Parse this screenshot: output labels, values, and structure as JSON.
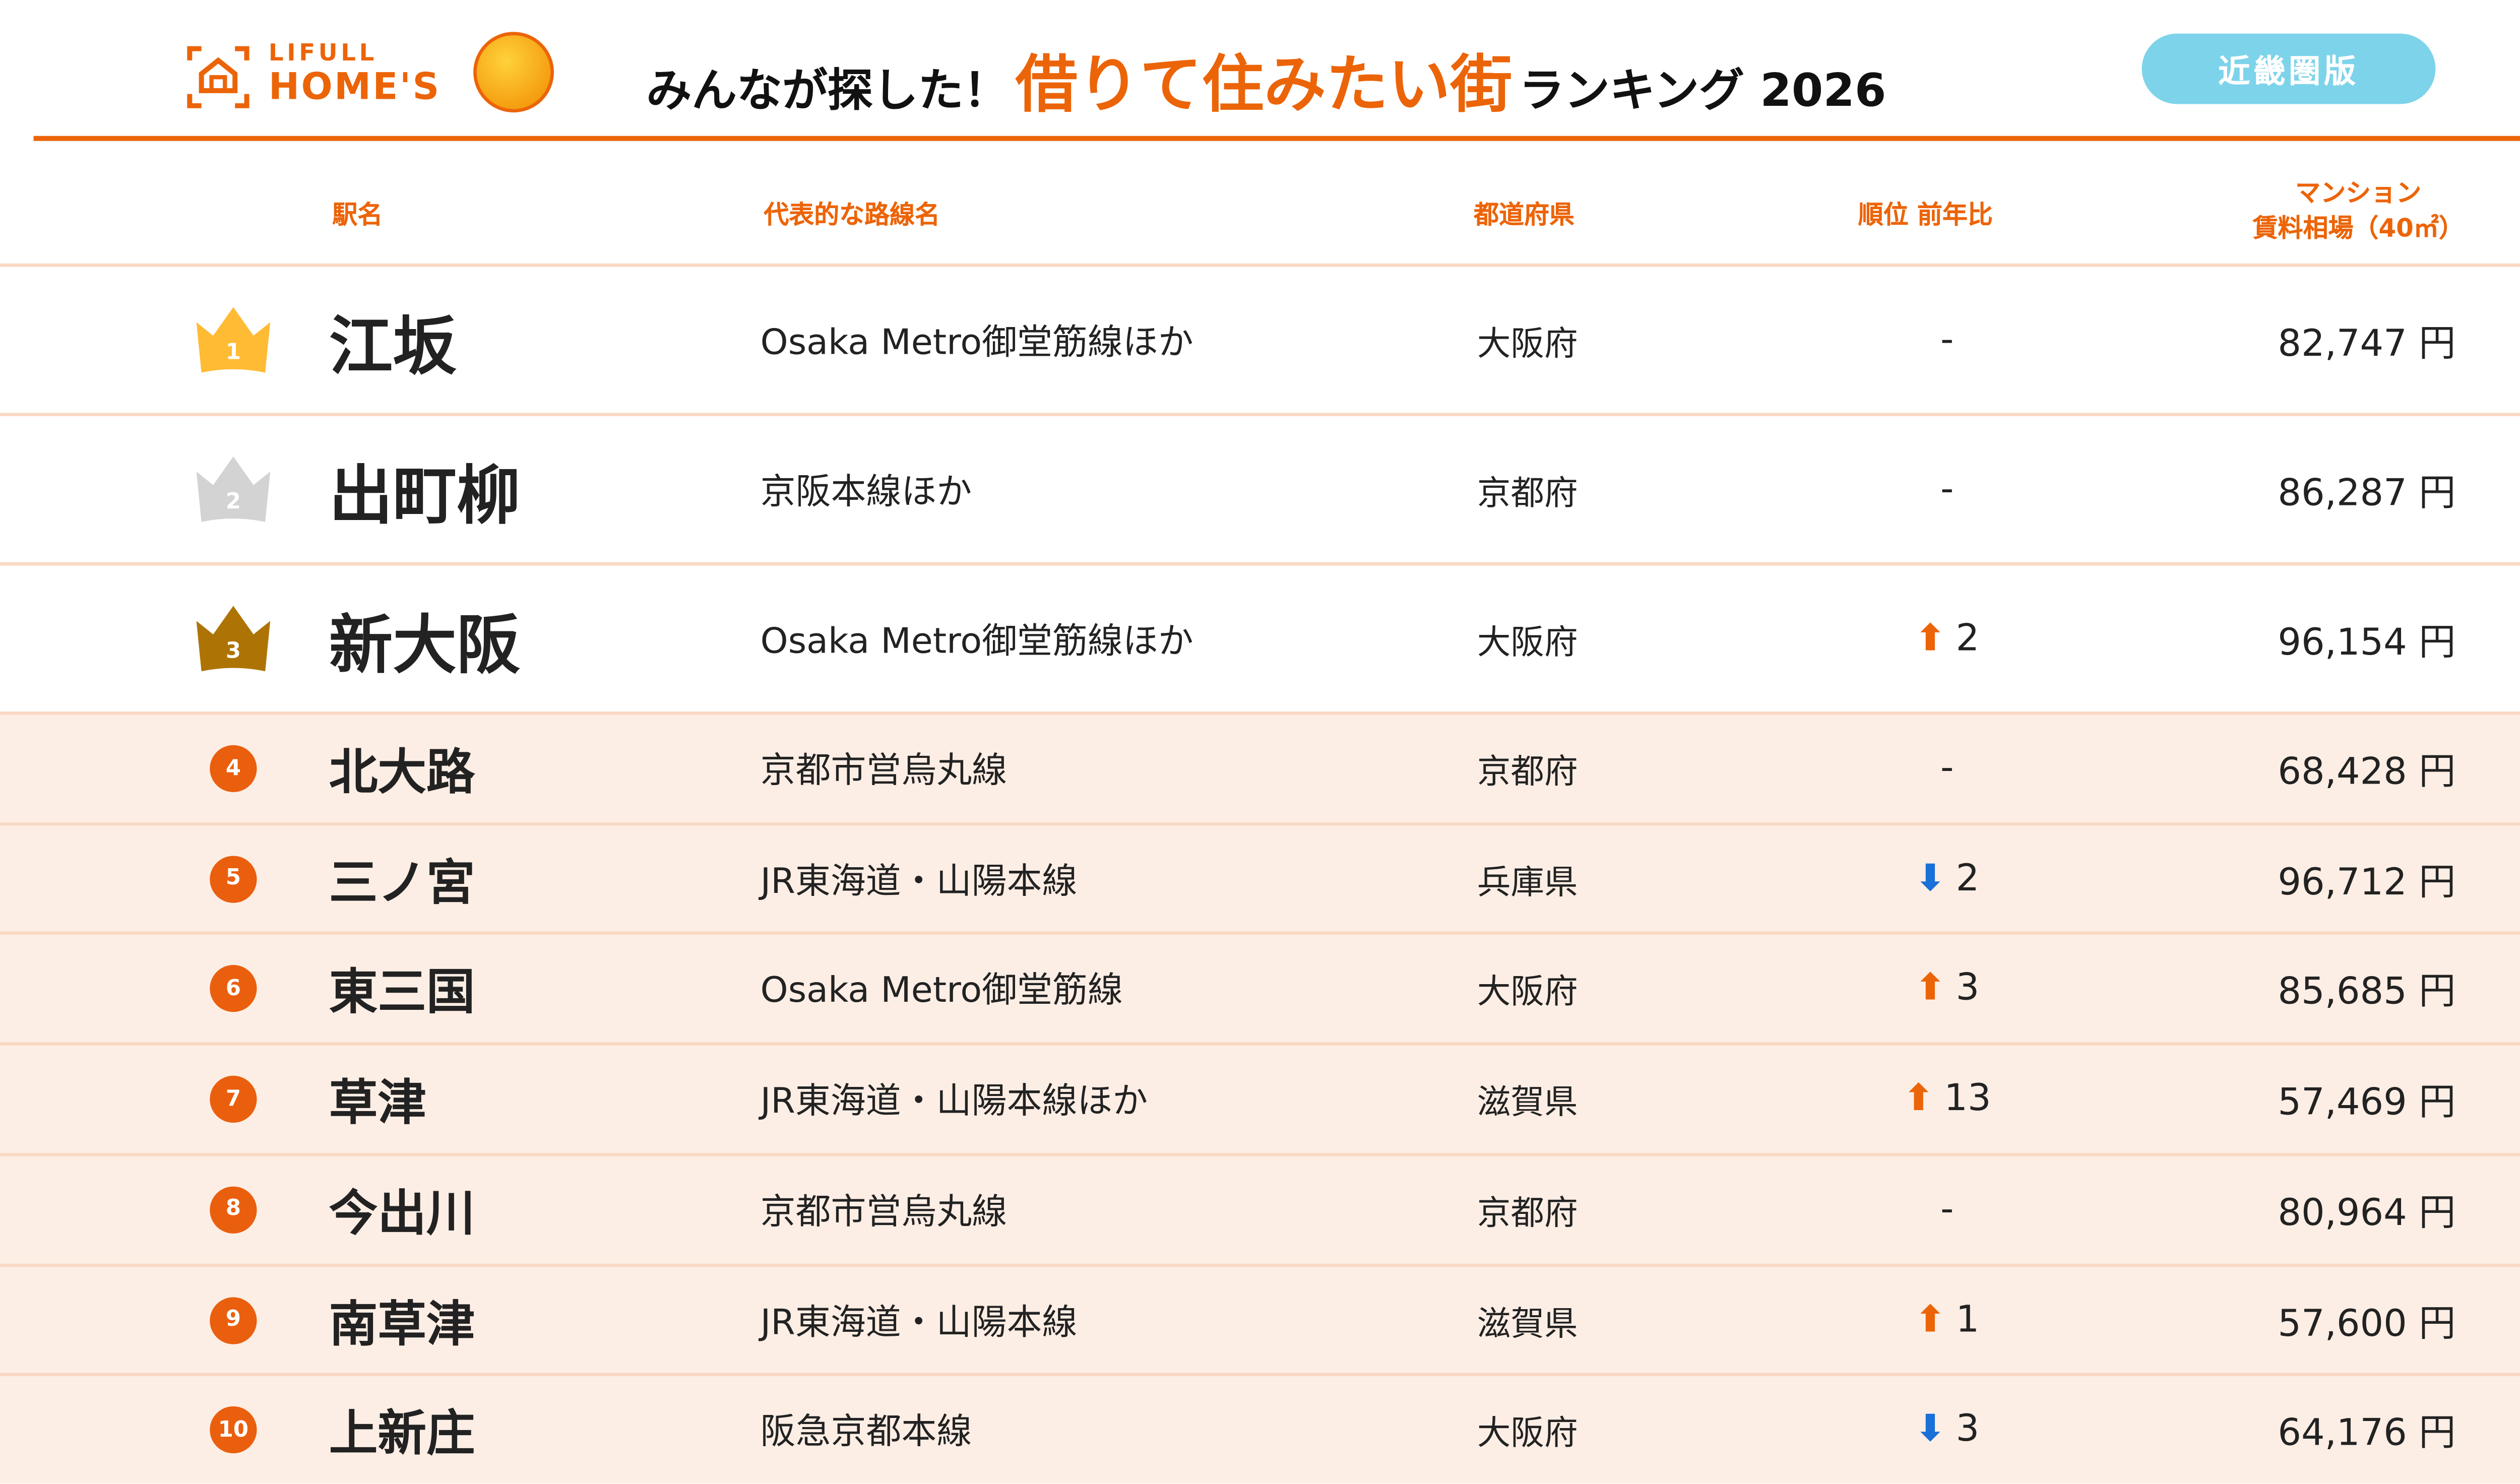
{
  "header": {
    "logo_top": "LIFULL",
    "logo_bottom": "HOME'S",
    "title_prefix": "みんなが探した！",
    "title_highlight": "借りて住みたい街",
    "title_suffix": "ランキング 2026",
    "region_button": "近畿圏版"
  },
  "colors": {
    "accent": "#ec6408",
    "button": "#7dd3ea",
    "gold": "#ffbb33",
    "silver": "#d3d3d3",
    "bronze": "#ad7405",
    "row_tint": "#fdeee5",
    "up": "#ec6408",
    "down": "#1a6fd8"
  },
  "columns": {
    "station": "駅名",
    "line": "代表的な路線名",
    "prefecture": "都道府県",
    "change": "順位 前年比",
    "rent_line1": "マンション",
    "rent_line2": "賃料相場（40㎡）"
  },
  "rows": [
    {
      "rank": "1",
      "station": "江坂",
      "line": "Osaka Metro御堂筋線ほか",
      "prefecture": "大阪府",
      "direction": "none",
      "change": "-",
      "rent": "82,747 円"
    },
    {
      "rank": "2",
      "station": "出町柳",
      "line": "京阪本線ほか",
      "prefecture": "京都府",
      "direction": "none",
      "change": "-",
      "rent": "86,287 円"
    },
    {
      "rank": "3",
      "station": "新大阪",
      "line": "Osaka Metro御堂筋線ほか",
      "prefecture": "大阪府",
      "direction": "up",
      "change": "2",
      "rent": "96,154 円"
    },
    {
      "rank": "4",
      "station": "北大路",
      "line": "京都市営烏丸線",
      "prefecture": "京都府",
      "direction": "none",
      "change": "-",
      "rent": "68,428 円"
    },
    {
      "rank": "5",
      "station": "三ノ宮",
      "line": "JR東海道・山陽本線",
      "prefecture": "兵庫県",
      "direction": "down",
      "change": "2",
      "rent": "96,712 円"
    },
    {
      "rank": "6",
      "station": "東三国",
      "line": "Osaka Metro御堂筋線",
      "prefecture": "大阪府",
      "direction": "up",
      "change": "3",
      "rent": "85,685 円"
    },
    {
      "rank": "7",
      "station": "草津",
      "line": "JR東海道・山陽本線ほか",
      "prefecture": "滋賀県",
      "direction": "up",
      "change": "13",
      "rent": "57,469 円"
    },
    {
      "rank": "8",
      "station": "今出川",
      "line": "京都市営烏丸線",
      "prefecture": "京都府",
      "direction": "none",
      "change": "-",
      "rent": "80,964 円"
    },
    {
      "rank": "9",
      "station": "南草津",
      "line": "JR東海道・山陽本線",
      "prefecture": "滋賀県",
      "direction": "up",
      "change": "1",
      "rent": "57,600 円"
    },
    {
      "rank": "10",
      "station": "上新庄",
      "line": "阪急京都本線",
      "prefecture": "大阪府",
      "direction": "down",
      "change": "3",
      "rent": "64,176 円"
    }
  ]
}
